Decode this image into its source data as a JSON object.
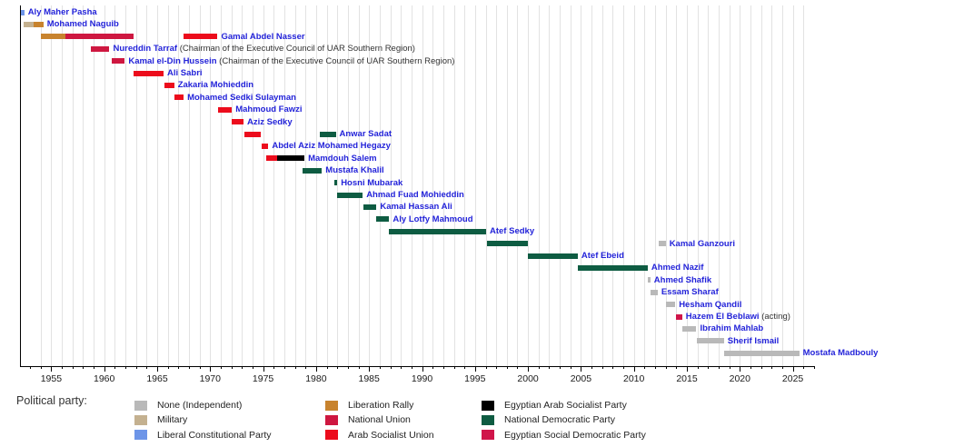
{
  "chart_data": {
    "type": "bar",
    "variant": "gantt-timeline",
    "title": "",
    "legend_title": "Political party:",
    "legend_position": "bottom",
    "grid": true,
    "x_range": [
      1952.05,
      2027.0
    ],
    "x_ticks": [
      1955,
      1960,
      1965,
      1970,
      1975,
      1980,
      1985,
      1990,
      1995,
      2000,
      2005,
      2010,
      2015,
      2020,
      2025
    ],
    "x_minor_tick_step": 1,
    "colors": {
      "name_label": "#2323d9",
      "qualifier_label": "#333333",
      "axis": "#000000",
      "grid": "#e2e2e2",
      "tick_label": "#1a1a1a"
    },
    "parties": [
      {
        "label": "None (Independent)",
        "color": "#b9b9b9"
      },
      {
        "label": "Military",
        "color": "#c4b190"
      },
      {
        "label": "Liberal Constitutional Party",
        "color": "#6d95e8"
      },
      {
        "label": "Liberation Rally",
        "color": "#c8832e"
      },
      {
        "label": "National Union",
        "color": "#ce1740"
      },
      {
        "label": "Arab Socialist Union",
        "color": "#ec0c1c"
      },
      {
        "label": "Egyptian Arab Socialist Party",
        "color": "#000000"
      },
      {
        "label": "National Democratic Party",
        "color": "#0e5c42"
      },
      {
        "label": "Egyptian Social Democratic Party",
        "color": "#d0154a"
      }
    ],
    "rows": [
      {
        "name": "Aly Maher Pasha",
        "segments": [
          {
            "party": "Liberal Constitutional Party",
            "start": 1952.15,
            "end": 1952.45
          }
        ]
      },
      {
        "name": "Mohamed Naguib",
        "segments": [
          {
            "party": "Military",
            "start": 1952.4,
            "end": 1953.35
          },
          {
            "party": "Liberation Rally",
            "start": 1953.35,
            "end": 1954.25
          }
        ]
      },
      {
        "name": "Gamal Abdel Nasser",
        "segments": [
          {
            "party": "Liberation Rally",
            "start": 1954.0,
            "end": 1956.35
          },
          {
            "party": "National Union",
            "start": 1956.35,
            "end": 1962.8
          },
          {
            "party": "Arab Socialist Union",
            "start": 1967.5,
            "end": 1970.7
          }
        ]
      },
      {
        "name": "Nureddin Tarraf",
        "qualifier": "(Chairman of the Executive Council of UAR Southern Region)",
        "segments": [
          {
            "party": "National Union",
            "start": 1958.75,
            "end": 1960.5
          }
        ]
      },
      {
        "name": "Kamal el-Din Hussein",
        "qualifier": "(Chairman of the Executive Council of UAR Southern Region)",
        "segments": [
          {
            "party": "National Union",
            "start": 1960.75,
            "end": 1961.95
          }
        ]
      },
      {
        "name": "Ali Sabri",
        "segments": [
          {
            "party": "Arab Socialist Union",
            "start": 1962.8,
            "end": 1965.6
          }
        ]
      },
      {
        "name": "Zakaria Mohieddin",
        "segments": [
          {
            "party": "Arab Socialist Union",
            "start": 1965.7,
            "end": 1966.6
          }
        ]
      },
      {
        "name": "Mohamed Sedki Sulayman",
        "segments": [
          {
            "party": "Arab Socialist Union",
            "start": 1966.65,
            "end": 1967.5
          }
        ]
      },
      {
        "name": "Mahmoud Fawzi",
        "segments": [
          {
            "party": "Arab Socialist Union",
            "start": 1970.75,
            "end": 1972.05
          }
        ]
      },
      {
        "name": "Aziz Sedky",
        "segments": [
          {
            "party": "Arab Socialist Union",
            "start": 1972.05,
            "end": 1973.15
          }
        ]
      },
      {
        "name": "Anwar Sadat",
        "segments": [
          {
            "party": "Arab Socialist Union",
            "start": 1973.2,
            "end": 1974.8
          },
          {
            "party": "National Democratic Party",
            "start": 1980.35,
            "end": 1981.85
          }
        ]
      },
      {
        "name": "Abdel Aziz Mohamed Hegazy",
        "segments": [
          {
            "party": "Arab Socialist Union",
            "start": 1974.85,
            "end": 1975.5
          }
        ]
      },
      {
        "name": "Mamdouh Salem",
        "segments": [
          {
            "party": "Arab Socialist Union",
            "start": 1975.3,
            "end": 1976.3
          },
          {
            "party": "Egyptian Arab Socialist Party",
            "start": 1976.3,
            "end": 1978.9
          }
        ]
      },
      {
        "name": "Mustafa Khalil",
        "segments": [
          {
            "party": "National Democratic Party",
            "start": 1978.75,
            "end": 1980.55
          }
        ]
      },
      {
        "name": "Hosni Mubarak",
        "segments": [
          {
            "party": "National Democratic Party",
            "start": 1981.7,
            "end": 1982.0
          }
        ]
      },
      {
        "name": "Ahmad Fuad Mohieddin",
        "segments": [
          {
            "party": "National Democratic Party",
            "start": 1982.0,
            "end": 1984.4
          }
        ]
      },
      {
        "name": "Kamal Hassan Ali",
        "segments": [
          {
            "party": "National Democratic Party",
            "start": 1984.45,
            "end": 1985.7
          }
        ]
      },
      {
        "name": "Aly Lotfy Mahmoud",
        "segments": [
          {
            "party": "National Democratic Party",
            "start": 1985.7,
            "end": 1986.9
          }
        ]
      },
      {
        "name": "Atef Sedky",
        "segments": [
          {
            "party": "National Democratic Party",
            "start": 1986.9,
            "end": 1996.05
          }
        ]
      },
      {
        "name": "Kamal Ganzouri",
        "segments": [
          {
            "party": "National Democratic Party",
            "start": 1996.1,
            "end": 2000.0
          },
          {
            "party": "None (Independent)",
            "start": 2012.3,
            "end": 2013.0
          }
        ]
      },
      {
        "name": "Atef Ebeid",
        "segments": [
          {
            "party": "National Democratic Party",
            "start": 2000.0,
            "end": 2004.7
          }
        ]
      },
      {
        "name": "Ahmed Nazif",
        "segments": [
          {
            "party": "National Democratic Party",
            "start": 2004.7,
            "end": 2011.3
          }
        ]
      },
      {
        "name": "Ahmed Shafik",
        "segments": [
          {
            "party": "None (Independent)",
            "start": 2011.35,
            "end": 2011.55
          }
        ]
      },
      {
        "name": "Essam Sharaf",
        "segments": [
          {
            "party": "None (Independent)",
            "start": 2011.6,
            "end": 2012.25
          }
        ]
      },
      {
        "name": "Hesham Qandil",
        "segments": [
          {
            "party": "None (Independent)",
            "start": 2013.05,
            "end": 2013.9
          }
        ]
      },
      {
        "name": "Hazem El Beblawi",
        "qualifier": "(acting)",
        "segments": [
          {
            "party": "Egyptian Social Democratic Party",
            "start": 2013.95,
            "end": 2014.55
          }
        ]
      },
      {
        "name": "Ibrahim Mahlab",
        "segments": [
          {
            "party": "None (Independent)",
            "start": 2014.6,
            "end": 2015.9
          }
        ]
      },
      {
        "name": "Sherif Ismail",
        "segments": [
          {
            "party": "None (Independent)",
            "start": 2015.95,
            "end": 2018.5
          }
        ]
      },
      {
        "name": "Mostafa Madbouly",
        "segments": [
          {
            "party": "None (Independent)",
            "start": 2018.55,
            "end": 2025.6
          }
        ]
      }
    ]
  }
}
